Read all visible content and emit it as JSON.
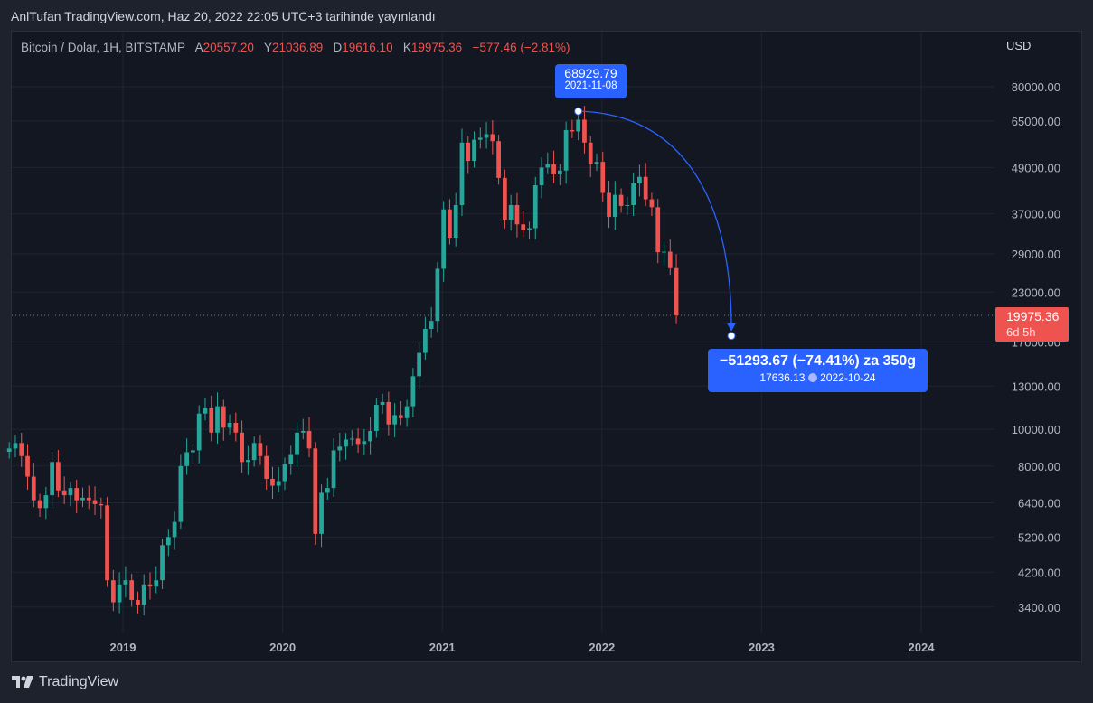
{
  "header": {
    "attribution": "AnlTufan TradingView.com, Haz 20, 2022 22:05 UTC+3 tarihinde yayınlandı"
  },
  "legend": {
    "symbol": "Bitcoin / Dolar, 1H, BITSTAMP",
    "open_label": "A",
    "open": "20557.20",
    "high_label": "Y",
    "high": "21036.89",
    "low_label": "D",
    "low": "19616.10",
    "close_label": "K",
    "close": "19975.36",
    "change": "−577.46 (−2.81%)"
  },
  "price_axis": {
    "currency": "USD"
  },
  "current_price": {
    "value": "19975.36",
    "countdown": "6d 5h",
    "color": "#ef5350"
  },
  "annotations": {
    "start": {
      "price": "68929.79",
      "date": "2021-11-08"
    },
    "end": {
      "change": "−51293.67 (−74.41%) za 350g",
      "price": "17636.13",
      "date": "2022-10-24",
      "clock_icon": "clock-icon"
    },
    "color": "#2962ff"
  },
  "brand": {
    "logo_text": "TradingView"
  },
  "chart_data": {
    "type": "candlestick",
    "y_scale": "log",
    "ylim": [
      3000,
      95000
    ],
    "xlim": [
      "2018-04-01",
      "2024-07-01"
    ],
    "grid": true,
    "up_color": "#26a69a",
    "down_color": "#ef5350",
    "y_ticks": [
      "80000.00",
      "65000.00",
      "49000.00",
      "37000.00",
      "29000.00",
      "23000.00",
      "17000.00",
      "13000.00",
      "10000.00",
      "8000.00",
      "6400.00",
      "5200.00",
      "4200.00",
      "3400.00"
    ],
    "x_ticks": [
      "2019",
      "2020",
      "2021",
      "2022",
      "2023",
      "2024"
    ],
    "start_date": "2018-04-16",
    "interval_days": 14,
    "closes": [
      8900,
      9200,
      8500,
      7500,
      6500,
      6200,
      6700,
      8200,
      6900,
      6700,
      7000,
      6500,
      6600,
      6500,
      6350,
      6300,
      4000,
      3500,
      3900,
      4000,
      3550,
      3450,
      3900,
      3850,
      4000,
      4950,
      5200,
      5700,
      8000,
      8700,
      8800,
      11000,
      11400,
      9800,
      11500,
      10100,
      10400,
      9800,
      8200,
      8300,
      9200,
      8500,
      7400,
      7100,
      7300,
      8100,
      8600,
      9800,
      9900,
      8900,
      5300,
      6800,
      7000,
      8800,
      9000,
      9400,
      9450,
      9150,
      9300,
      9900,
      11600,
      11800,
      10300,
      10900,
      10700,
      11500,
      13800,
      15900,
      18400,
      19300,
      26500,
      38000,
      32000,
      39000,
      57000,
      51000,
      58000,
      58700,
      60000,
      57500,
      46000,
      35700,
      39000,
      34700,
      33500,
      33900,
      44000,
      49000,
      49900,
      47000,
      48100,
      61500,
      61000,
      65500,
      57000,
      50000,
      50700,
      42000,
      36300,
      41500,
      38800,
      39000,
      44500,
      46300,
      40400,
      38500,
      29300,
      29400,
      26600,
      19975.36
    ]
  }
}
